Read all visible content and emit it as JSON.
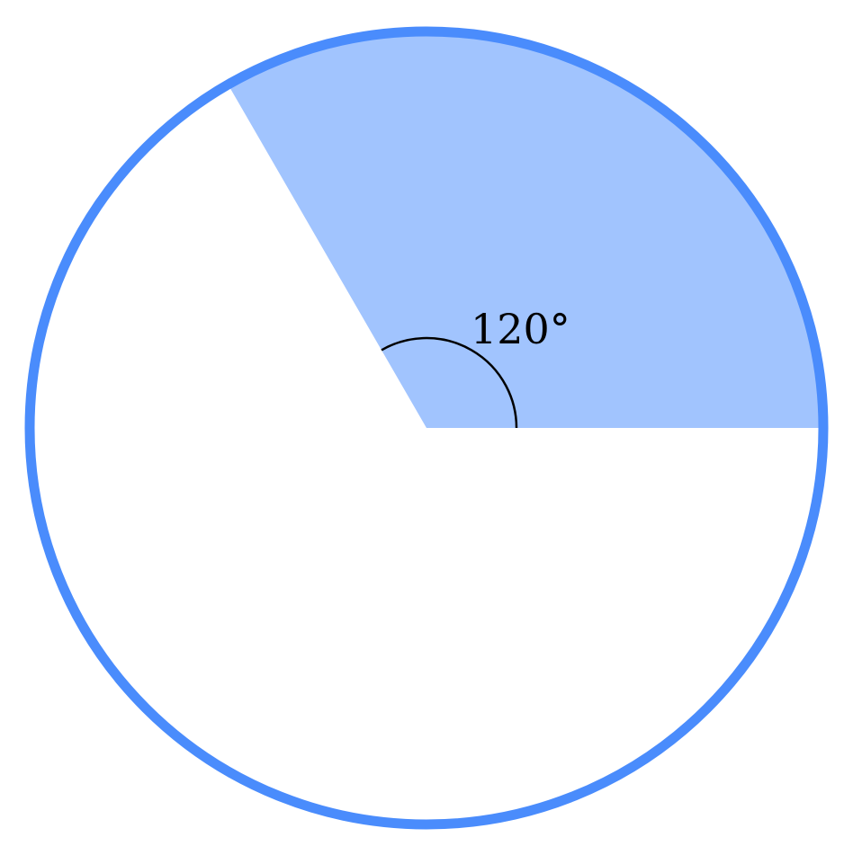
{
  "diagram": {
    "angle_degrees": 120,
    "angle_label": "120°",
    "colors": {
      "circle_stroke": "#4a8cfc",
      "sector_fill": "#a1c4fe",
      "angle_arc": "#000000"
    }
  }
}
